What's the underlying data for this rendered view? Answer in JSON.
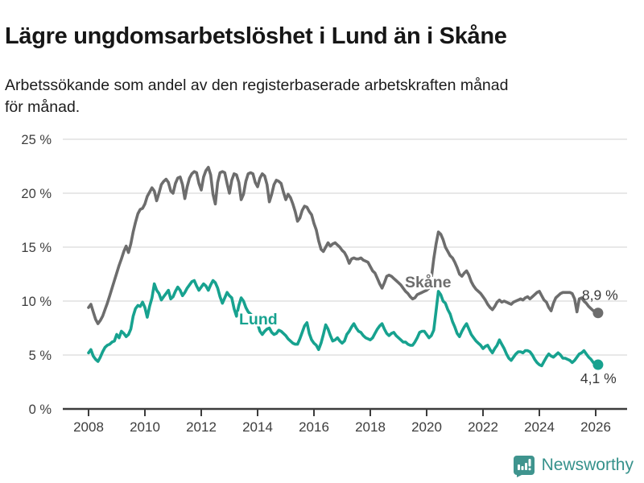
{
  "header": {
    "title": "Lägre ungdomsarbetslöshet i Lund än i Skåne",
    "subtitle_line1": "Arbetssökande som andel av den registerbaserade arbetskraften månad",
    "subtitle_line2": "för månad."
  },
  "footer": {
    "brand": "Newsworthy"
  },
  "colors": {
    "lund_line": "#17a28f",
    "skane_line": "#6d6d6d",
    "brand_teal": "#35918b",
    "grid": "#d9d9d9",
    "axis": "#3c3c3c",
    "tick_text": "#3d3d3d",
    "end_label_text": "#383838"
  },
  "chart_data": {
    "type": "line",
    "title": "Lägre ungdomsarbetslöshet i Lund än i Skåne",
    "subtitle": "Arbetssökande som andel av den registerbaserade arbetskraften månad för månad.",
    "x_unit": "month",
    "x_start": "2008-01",
    "x_end": "2026-02",
    "ylim": [
      0,
      25
    ],
    "y_ticks": [
      0,
      5,
      10,
      15,
      20,
      25
    ],
    "y_tick_labels": [
      "0 %",
      "5 %",
      "10 %",
      "15 %",
      "20 %",
      "25 %"
    ],
    "x_ticks": [
      2008,
      2010,
      2012,
      2014,
      2016,
      2018,
      2020,
      2022,
      2024,
      2026
    ],
    "x_tick_labels": [
      "2008",
      "2010",
      "2012",
      "2014",
      "2016",
      "2018",
      "2020",
      "2022",
      "2024",
      "2026"
    ],
    "grid": "horizontal",
    "legend": "inline-labels",
    "series": [
      {
        "name": "Skåne",
        "color": "#6d6d6d",
        "end_label": "8,9 %",
        "end_value": 8.9,
        "values": [
          9.4,
          9.7,
          9.0,
          8.3,
          7.9,
          8.2,
          8.6,
          9.2,
          9.8,
          10.5,
          11.2,
          11.9,
          12.6,
          13.3,
          13.9,
          14.6,
          15.1,
          14.5,
          15.3,
          16.4,
          17.3,
          18.1,
          18.5,
          18.6,
          19.0,
          19.7,
          20.1,
          20.5,
          20.2,
          19.3,
          20.0,
          20.8,
          21.1,
          21.3,
          21.0,
          20.2,
          20.0,
          20.9,
          21.4,
          21.5,
          20.8,
          19.5,
          20.6,
          21.4,
          21.8,
          22.0,
          21.9,
          20.9,
          20.3,
          21.5,
          22.1,
          22.4,
          21.7,
          19.9,
          19.0,
          21.0,
          21.9,
          22.0,
          21.9,
          20.9,
          20.0,
          21.2,
          21.8,
          21.7,
          21.0,
          19.4,
          19.9,
          21.1,
          21.8,
          21.9,
          21.8,
          21.0,
          20.6,
          21.4,
          21.8,
          21.6,
          20.8,
          19.2,
          19.9,
          20.8,
          21.2,
          21.1,
          20.9,
          20.1,
          19.4,
          19.9,
          19.6,
          19.0,
          18.3,
          17.4,
          17.7,
          18.4,
          18.8,
          18.7,
          18.3,
          18.0,
          17.2,
          16.6,
          15.6,
          14.8,
          14.6,
          15.0,
          15.4,
          15.1,
          15.3,
          15.4,
          15.2,
          15.0,
          14.7,
          14.5,
          14.1,
          13.5,
          13.9,
          14.0,
          13.9,
          13.9,
          14.0,
          13.8,
          13.7,
          13.6,
          13.2,
          12.8,
          12.6,
          12.1,
          11.6,
          11.2,
          11.7,
          12.3,
          12.4,
          12.3,
          12.1,
          11.9,
          11.7,
          11.5,
          11.2,
          10.9,
          10.7,
          10.4,
          10.2,
          10.3,
          10.6,
          10.7,
          10.8,
          10.9,
          11.0,
          11.2,
          12.1,
          13.9,
          15.3,
          16.4,
          16.2,
          15.7,
          15.0,
          14.6,
          14.2,
          14.0,
          13.6,
          13.1,
          12.5,
          12.3,
          12.6,
          12.8,
          12.4,
          11.8,
          11.4,
          11.1,
          10.9,
          10.7,
          10.4,
          10.1,
          9.7,
          9.4,
          9.2,
          9.5,
          9.9,
          10.1,
          9.9,
          10.0,
          9.9,
          9.8,
          9.7,
          9.9,
          10.0,
          10.1,
          10.2,
          10.1,
          10.3,
          10.4,
          10.2,
          10.4,
          10.6,
          10.8,
          10.9,
          10.5,
          10.1,
          9.9,
          9.4,
          9.1,
          9.8,
          10.3,
          10.5,
          10.7,
          10.8,
          10.8,
          10.8,
          10.8,
          10.7,
          10.2,
          9.0,
          10.2,
          10.3,
          10.0,
          9.8,
          9.5,
          9.3,
          9.1,
          9.0,
          8.9
        ]
      },
      {
        "name": "Lund",
        "color": "#17a28f",
        "end_label": "4,1 %",
        "end_value": 4.1,
        "values": [
          5.2,
          5.5,
          4.9,
          4.6,
          4.4,
          4.8,
          5.3,
          5.7,
          5.9,
          6.0,
          6.2,
          6.3,
          6.9,
          6.6,
          7.2,
          7.0,
          6.7,
          6.9,
          7.4,
          8.6,
          9.3,
          9.6,
          9.5,
          9.9,
          9.4,
          8.5,
          9.5,
          10.3,
          11.6,
          11.0,
          10.7,
          10.1,
          10.4,
          10.7,
          11.0,
          10.2,
          10.4,
          10.9,
          11.3,
          11.0,
          10.5,
          10.8,
          11.2,
          11.5,
          11.8,
          11.9,
          11.4,
          11.0,
          11.3,
          11.6,
          11.4,
          11.0,
          11.5,
          11.9,
          11.7,
          11.2,
          10.4,
          9.8,
          10.3,
          10.8,
          10.5,
          10.3,
          9.3,
          8.6,
          9.6,
          10.3,
          10.0,
          9.4,
          9.0,
          8.8,
          8.6,
          8.4,
          7.9,
          7.2,
          6.9,
          7.2,
          7.4,
          7.5,
          7.1,
          6.9,
          7.0,
          7.3,
          7.2,
          7.0,
          6.8,
          6.5,
          6.3,
          6.1,
          6.0,
          6.0,
          6.5,
          7.1,
          7.7,
          8.0,
          7.0,
          6.4,
          6.1,
          5.9,
          5.5,
          6.1,
          6.9,
          7.8,
          7.4,
          6.8,
          6.3,
          6.4,
          6.6,
          6.3,
          6.1,
          6.3,
          6.9,
          7.2,
          7.6,
          7.9,
          7.5,
          7.2,
          7.1,
          6.8,
          6.6,
          6.5,
          6.4,
          6.6,
          7.0,
          7.4,
          7.7,
          7.9,
          7.4,
          7.0,
          6.8,
          7.0,
          7.1,
          6.8,
          6.6,
          6.4,
          6.2,
          6.2,
          6.0,
          5.9,
          5.9,
          6.2,
          6.6,
          7.1,
          7.2,
          7.2,
          6.9,
          6.6,
          6.8,
          7.3,
          9.1,
          10.9,
          10.6,
          10.0,
          9.8,
          9.2,
          8.8,
          8.1,
          7.6,
          7.0,
          6.7,
          7.2,
          7.6,
          7.9,
          7.4,
          6.9,
          6.6,
          6.3,
          6.1,
          5.9,
          5.6,
          5.8,
          5.9,
          5.5,
          5.2,
          5.6,
          5.9,
          6.4,
          6.0,
          5.6,
          5.1,
          4.7,
          4.5,
          4.8,
          5.1,
          5.3,
          5.3,
          5.2,
          5.4,
          5.4,
          5.3,
          5.0,
          4.6,
          4.3,
          4.1,
          4.0,
          4.4,
          4.8,
          5.1,
          4.9,
          4.8,
          5.0,
          5.2,
          5.0,
          4.7,
          4.7,
          4.6,
          4.5,
          4.3,
          4.5,
          4.8,
          5.1,
          5.2,
          5.4,
          5.1,
          4.8,
          4.6,
          4.3,
          4.2,
          4.1
        ]
      }
    ]
  }
}
